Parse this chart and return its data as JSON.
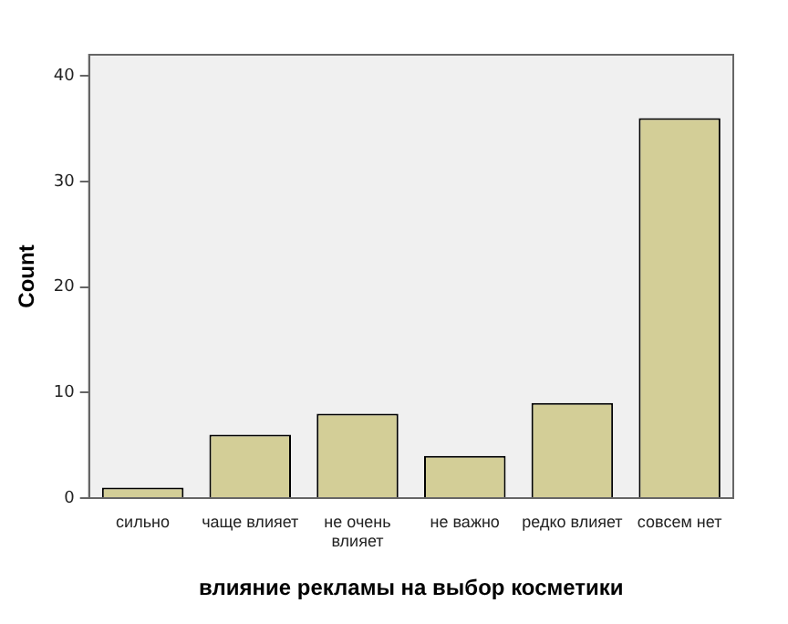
{
  "chart_data": {
    "type": "bar",
    "xlabel": "влияние рекламы на выбор косметики",
    "ylabel": "Count",
    "categories": [
      "сильно",
      "чаще влияет",
      "не очень влияет",
      "не важно",
      "редко влияет",
      "совсем нет"
    ],
    "values": [
      1,
      6,
      8,
      4,
      9,
      36
    ],
    "color": "#d3ce97",
    "ylim": [
      0,
      42
    ],
    "yticks": [
      0,
      10,
      20,
      30,
      40
    ],
    "grid": false,
    "legend": false
  }
}
